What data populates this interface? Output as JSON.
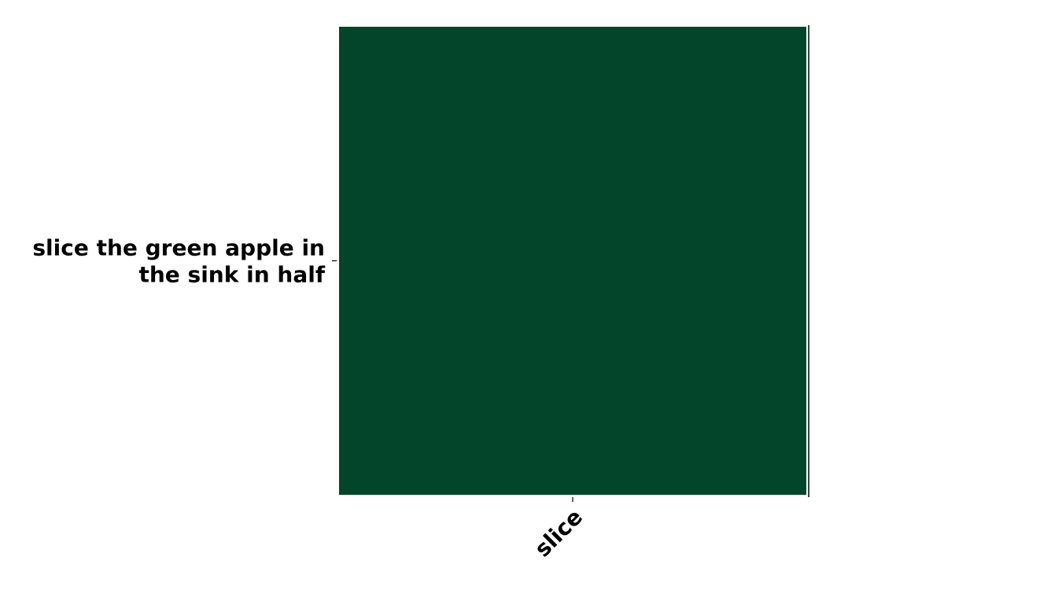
{
  "chart_data": {
    "type": "heatmap",
    "title": "",
    "xlabel": "",
    "ylabel": "",
    "x_categories": [
      "slice"
    ],
    "y_categories": [
      "slice the green apple in the sink in half"
    ],
    "y_tick_lines": [
      [
        "slice the green apple in",
        "the sink in half"
      ]
    ],
    "values": [
      [
        1
      ]
    ],
    "cell_colors": [
      [
        "#03452a"
      ]
    ],
    "colorbar": false,
    "grid": false,
    "legend": "none"
  }
}
